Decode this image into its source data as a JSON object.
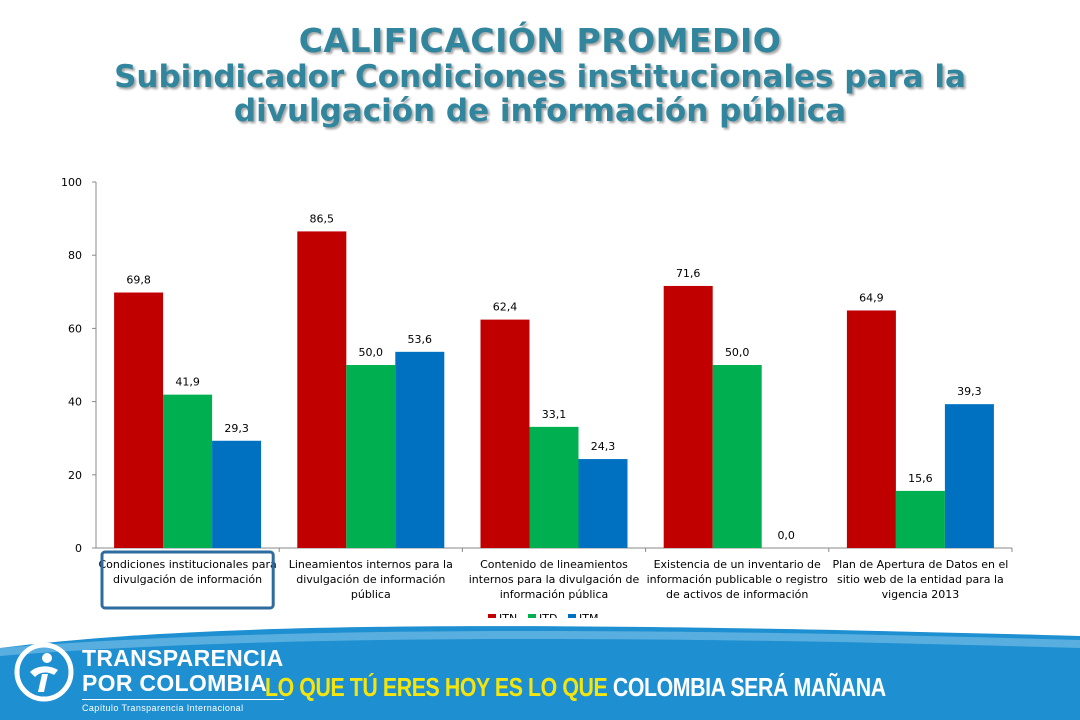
{
  "title": {
    "main": "CALIFICACIÓN PROMEDIO",
    "sub": "Subindicador Condiciones institucionales para la  divulgación de información pública"
  },
  "chart_data": {
    "type": "bar",
    "categories": [
      [
        "Condiciones institucionales para",
        "divulgación de información"
      ],
      [
        "Lineamientos internos para la",
        "divulgación de información",
        "pública"
      ],
      [
        "Contenido de lineamientos",
        "internos para la divulgación de",
        "información pública"
      ],
      [
        "Existencia de un inventario de",
        "información publicable o registro",
        "de activos de información"
      ],
      [
        "Plan de Apertura de Datos en el",
        "sitio web de la entidad para la",
        "vigencia 2013"
      ]
    ],
    "series": [
      {
        "name": "ITN",
        "color": "#c00000",
        "values": [
          69.8,
          86.5,
          62.4,
          71.6,
          64.9
        ],
        "labels": [
          "69,8",
          "86,5",
          "62,4",
          "71,6",
          "64,9"
        ]
      },
      {
        "name": "ITD",
        "color": "#00b050",
        "values": [
          41.9,
          50.0,
          33.1,
          50.0,
          15.6
        ],
        "labels": [
          "41,9",
          "50,0",
          "33,1",
          "50,0",
          "15,6"
        ]
      },
      {
        "name": "ITM",
        "color": "#0070c0",
        "values": [
          29.3,
          53.6,
          24.3,
          0.0,
          39.3
        ],
        "labels": [
          "29,3",
          "53,6",
          "24,3",
          "0,0",
          "39,3"
        ]
      }
    ],
    "ylim": [
      0,
      100
    ],
    "yticks": [
      0,
      20,
      40,
      60,
      80,
      100
    ],
    "legend_position": "bottom",
    "highlighted_category": 0,
    "highlight_color": "#2e6b9e"
  },
  "footer": {
    "brand_line1": "TRANSPARENCIA",
    "brand_line2": "POR COLOMBIA",
    "brand_sub": "Capítulo Transparencia Internacional",
    "slogan_a": "LO QUE TÚ ERES HOY ES LO QUE",
    "slogan_b": " COLOMBIA SERÁ MAÑANA",
    "bg_color": "#1e8fd0",
    "slogan_color": "#f5e50f"
  }
}
